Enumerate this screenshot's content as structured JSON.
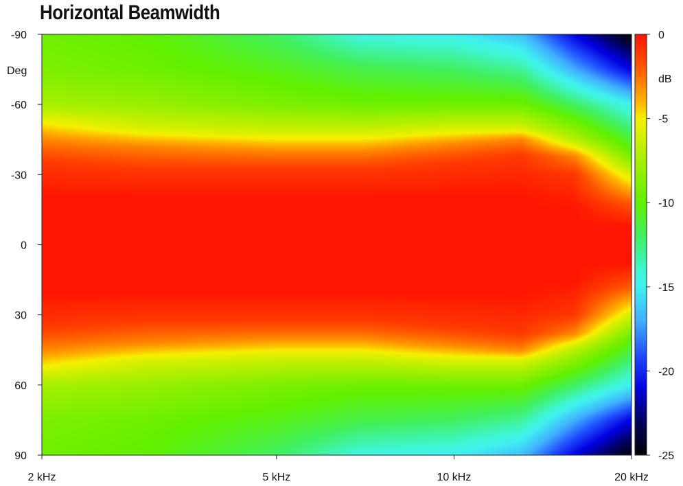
{
  "chart_data": {
    "type": "heatmap",
    "title": "Horizontal Beamwidth",
    "xlabel": "",
    "ylabel": "Deg",
    "x_scale": "log",
    "x_unit": "Hz",
    "xlim": [
      2000,
      20000
    ],
    "x_ticks": [
      2000,
      5000,
      10000,
      20000
    ],
    "x_tick_labels": [
      "2 kHz",
      "5 kHz",
      "10 kHz",
      "20 kHz"
    ],
    "ylim": [
      -90,
      90
    ],
    "y_ticks": [
      -90,
      -60,
      -30,
      0,
      30,
      60,
      90
    ],
    "y_tick_labels": [
      "-90",
      "-60",
      "-30",
      "0",
      "30",
      "60",
      "90"
    ],
    "colorbar": {
      "label": "dB",
      "range": [
        -25,
        0
      ],
      "ticks": [
        0,
        -5,
        -10,
        -15,
        -20,
        -25
      ],
      "tick_labels": [
        "0",
        "-5",
        "-10",
        "-15",
        "-20",
        "-25"
      ],
      "colors": [
        {
          "db": 0,
          "color": "#ff1500"
        },
        {
          "db": -2,
          "color": "#ff5a00"
        },
        {
          "db": -4,
          "color": "#ffb400"
        },
        {
          "db": -5,
          "color": "#f5f000"
        },
        {
          "db": -7,
          "color": "#b4f000"
        },
        {
          "db": -10,
          "color": "#60f000"
        },
        {
          "db": -12,
          "color": "#40f060"
        },
        {
          "db": -14,
          "color": "#40f5d0"
        },
        {
          "db": -15,
          "color": "#40f0f0"
        },
        {
          "db": -17,
          "color": "#40b0ff"
        },
        {
          "db": -19,
          "color": "#2050ff"
        },
        {
          "db": -21,
          "color": "#0000e0"
        },
        {
          "db": -23,
          "color": "#000060"
        },
        {
          "db": -25,
          "color": "#000000"
        }
      ]
    },
    "series": [
      {
        "frequency_hz": 2000,
        "angle_deg": [
          -90,
          -75,
          -60,
          -52,
          -45,
          -35,
          -20,
          0,
          20,
          35,
          45,
          52,
          60,
          75,
          90
        ],
        "level_db": [
          -9.5,
          -9,
          -7.5,
          -5,
          -3,
          -1,
          0,
          0,
          0,
          -1,
          -3,
          -5,
          -7.5,
          -9,
          -9.5
        ]
      },
      {
        "frequency_hz": 3000,
        "angle_deg": [
          -90,
          -75,
          -60,
          -50,
          -42,
          -32,
          -20,
          0,
          20,
          32,
          42,
          50,
          60,
          75,
          90
        ],
        "level_db": [
          -10,
          -9.5,
          -8,
          -6,
          -3,
          -1,
          0,
          0,
          0,
          -1,
          -3,
          -6,
          -8,
          -9.5,
          -10
        ]
      },
      {
        "frequency_hz": 5000,
        "angle_deg": [
          -90,
          -75,
          -60,
          -48,
          -40,
          -32,
          -20,
          0,
          20,
          32,
          40,
          48,
          60,
          75,
          90
        ],
        "level_db": [
          -12,
          -10.5,
          -9,
          -6,
          -3,
          -1,
          0,
          0,
          0,
          -1,
          -3,
          -6,
          -9,
          -10.5,
          -12
        ]
      },
      {
        "frequency_hz": 7000,
        "angle_deg": [
          -90,
          -75,
          -60,
          -48,
          -40,
          -32,
          -20,
          0,
          20,
          32,
          40,
          48,
          60,
          75,
          90
        ],
        "level_db": [
          -14.5,
          -11.5,
          -9.5,
          -6,
          -3,
          -1,
          0,
          0,
          0,
          -1,
          -3,
          -6,
          -9.5,
          -11.5,
          -14.5
        ]
      },
      {
        "frequency_hz": 10000,
        "angle_deg": [
          -90,
          -75,
          -60,
          -50,
          -43,
          -35,
          -20,
          0,
          20,
          35,
          43,
          50,
          60,
          75,
          90
        ],
        "level_db": [
          -15,
          -12,
          -9.5,
          -6,
          -3,
          -1,
          0,
          0,
          0,
          -1,
          -3,
          -6,
          -9.5,
          -12,
          -15
        ]
      },
      {
        "frequency_hz": 13000,
        "angle_deg": [
          -90,
          -75,
          -60,
          -50,
          -45,
          -38,
          -20,
          0,
          20,
          38,
          45,
          50,
          60,
          75,
          90
        ],
        "level_db": [
          -16.5,
          -13,
          -9.5,
          -6,
          -3,
          -1,
          0,
          0,
          0,
          -1,
          -3,
          -6,
          -9.5,
          -13,
          -16.5
        ]
      },
      {
        "frequency_hz": 16000,
        "angle_deg": [
          -90,
          -75,
          -60,
          -45,
          -38,
          -30,
          -15,
          0,
          15,
          30,
          38,
          45,
          60,
          75,
          90
        ],
        "level_db": [
          -21,
          -17,
          -12,
          -7,
          -3,
          -1,
          0,
          0,
          0,
          -1,
          -3,
          -7,
          -12,
          -17,
          -21
        ]
      },
      {
        "frequency_hz": 20000,
        "angle_deg": [
          -90,
          -75,
          -60,
          -40,
          -30,
          -18,
          -8,
          0,
          8,
          18,
          30,
          40,
          60,
          75,
          90
        ],
        "level_db": [
          -25,
          -21,
          -15,
          -10,
          -6,
          -2,
          0,
          0,
          0,
          -2,
          -6,
          -10,
          -15,
          -21,
          -25
        ]
      }
    ]
  }
}
